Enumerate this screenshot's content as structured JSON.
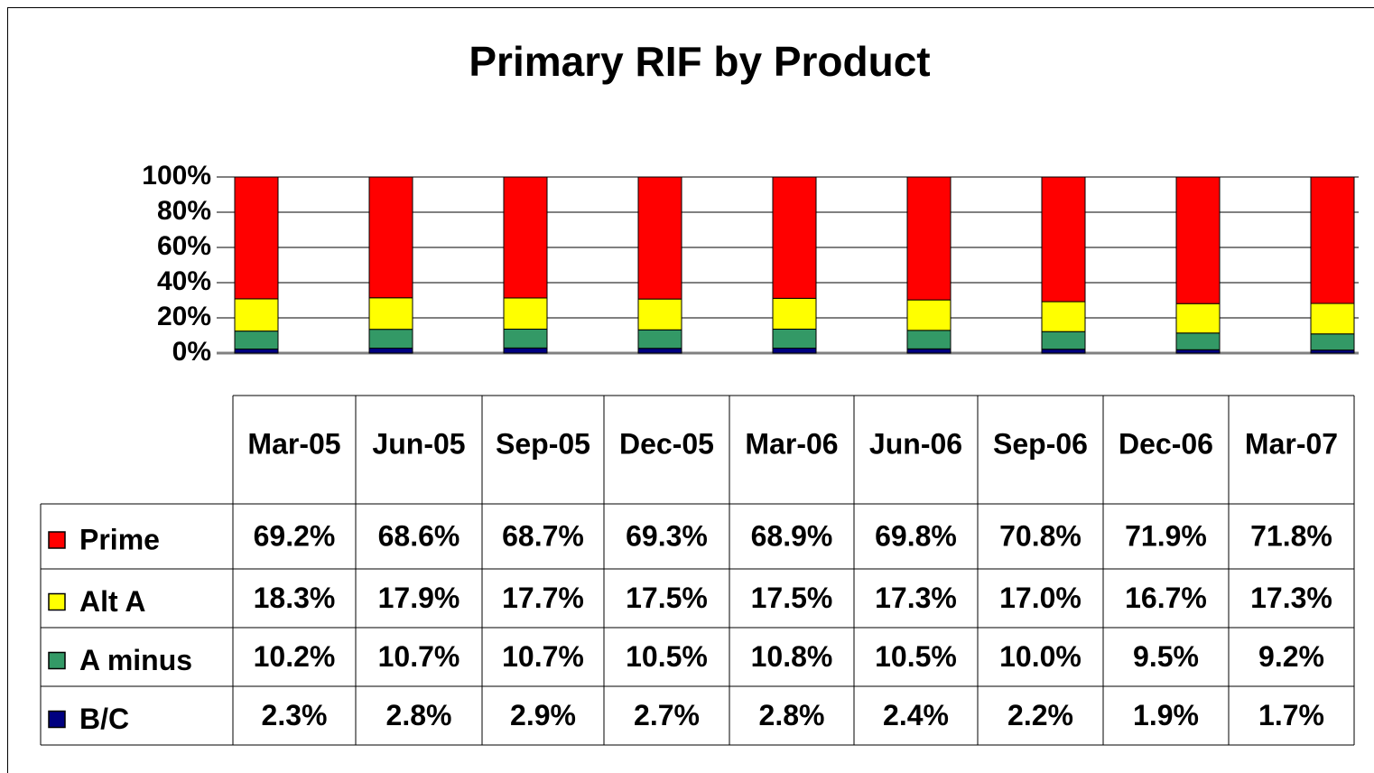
{
  "chart_data": {
    "type": "bar",
    "stacked": true,
    "title": "Primary RIF by Product",
    "categories": [
      "Mar-05",
      "Jun-05",
      "Sep-05",
      "Dec-05",
      "Mar-06",
      "Jun-06",
      "Sep-06",
      "Dec-06",
      "Mar-07"
    ],
    "series": [
      {
        "name": "Prime",
        "color": "#ff0000",
        "values": [
          69.2,
          68.6,
          68.7,
          69.3,
          68.9,
          69.8,
          70.8,
          71.9,
          71.8
        ],
        "value_labels": [
          "69.2%",
          "68.6%",
          "68.7%",
          "69.3%",
          "68.9%",
          "69.8%",
          "70.8%",
          "71.9%",
          "71.8%"
        ]
      },
      {
        "name": "Alt A",
        "color": "#ffff00",
        "values": [
          18.3,
          17.9,
          17.7,
          17.5,
          17.5,
          17.3,
          17.0,
          16.7,
          17.3
        ],
        "value_labels": [
          "18.3%",
          "17.9%",
          "17.7%",
          "17.5%",
          "17.5%",
          "17.3%",
          "17.0%",
          "16.7%",
          "17.3%"
        ]
      },
      {
        "name": "A minus",
        "color": "#339966",
        "values": [
          10.2,
          10.7,
          10.7,
          10.5,
          10.8,
          10.5,
          10.0,
          9.5,
          9.2
        ],
        "value_labels": [
          "10.2%",
          "10.7%",
          "10.7%",
          "10.5%",
          "10.8%",
          "10.5%",
          "10.0%",
          "9.5%",
          "9.2%"
        ]
      },
      {
        "name": "B/C",
        "color": "#000080",
        "values": [
          2.3,
          2.8,
          2.9,
          2.7,
          2.8,
          2.4,
          2.2,
          1.9,
          1.7
        ],
        "value_labels": [
          "2.3%",
          "2.8%",
          "2.9%",
          "2.7%",
          "2.8%",
          "2.4%",
          "2.2%",
          "1.9%",
          "1.7%"
        ]
      }
    ],
    "ylim": [
      0,
      100
    ],
    "yticks": [
      {
        "value": 0,
        "label": "0%"
      },
      {
        "value": 20,
        "label": "20%"
      },
      {
        "value": 40,
        "label": "40%"
      },
      {
        "value": 60,
        "label": "60%"
      },
      {
        "value": 80,
        "label": "80%"
      },
      {
        "value": 100,
        "label": "100%"
      }
    ],
    "grid": true
  }
}
